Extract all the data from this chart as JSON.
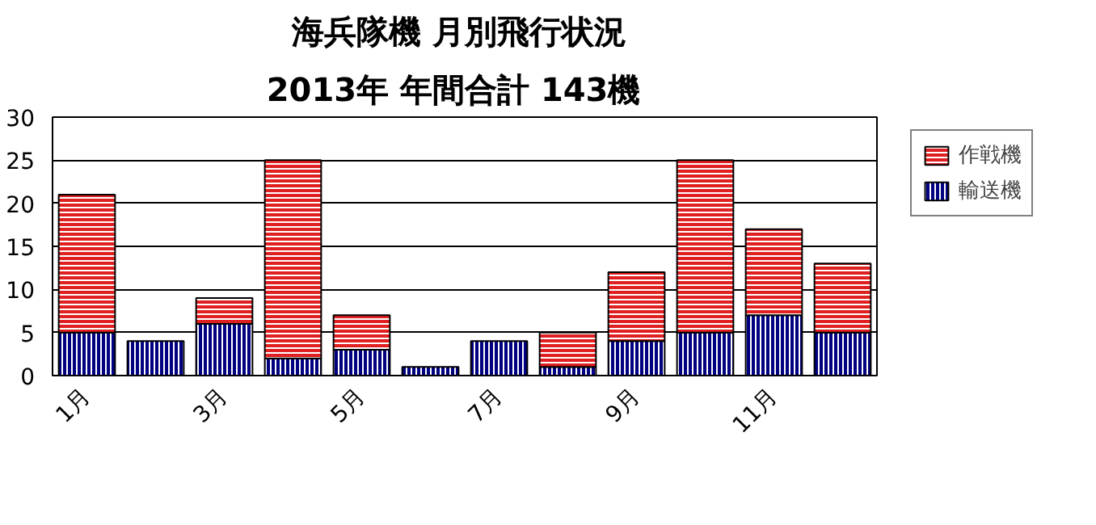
{
  "chart_data": {
    "type": "bar",
    "stacked": true,
    "title": "海兵隊機  月別飛行状況",
    "subtitle": "2013年  年間合計  143機",
    "categories": [
      "1月",
      null,
      "3月",
      null,
      "5月",
      null,
      "7月",
      null,
      "9月",
      null,
      "11月",
      null
    ],
    "series": [
      {
        "name": "輸送機",
        "color": "#000080",
        "values": [
          5,
          4,
          6,
          2,
          3,
          1,
          4,
          1,
          4,
          5,
          7,
          5
        ]
      },
      {
        "name": "作戦機",
        "color": "#e02020",
        "values": [
          16,
          0,
          3,
          23,
          4,
          0,
          0,
          4,
          8,
          20,
          10,
          8
        ]
      }
    ],
    "ylim": [
      0,
      30
    ],
    "yticks": [
      0,
      5,
      10,
      15,
      20,
      25,
      30
    ],
    "grid": "y",
    "legend": "top right"
  }
}
